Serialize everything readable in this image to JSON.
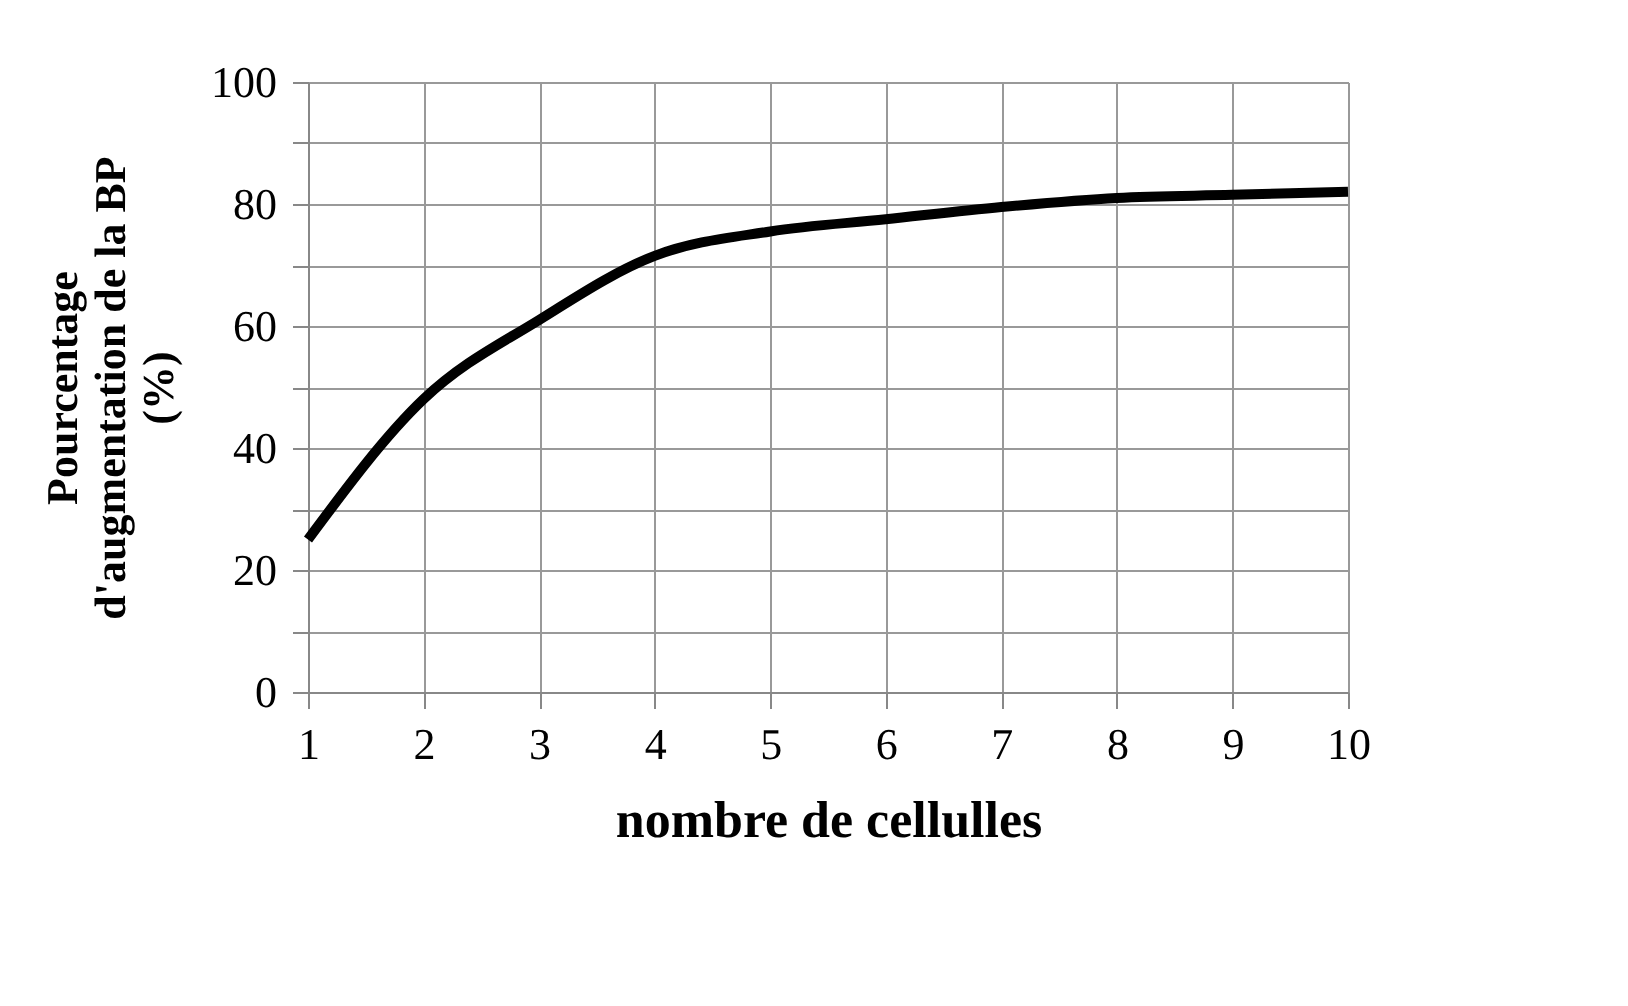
{
  "chart_data": {
    "type": "line",
    "xlabel": "nombre de cellulles",
    "ylabel": "Pourcentage\nd'augmentation de la BP\n(%)",
    "x": [
      1,
      2,
      3,
      4,
      5,
      6,
      7,
      8,
      9,
      10
    ],
    "series": [
      {
        "color": "#000000",
        "values": [
          25,
          48,
          61,
          71.5,
          75.5,
          77.5,
          79.5,
          81,
          81.5,
          82
        ]
      }
    ],
    "xlim": [
      1,
      10
    ],
    "xticks": [
      1,
      2,
      3,
      4,
      5,
      6,
      7,
      8,
      9,
      10
    ],
    "ylim": [
      0,
      100
    ],
    "yticks": [
      0,
      {
        "value": 10,
        "label": null
      },
      20,
      {
        "value": 30,
        "label": null
      },
      40,
      {
        "value": 50,
        "label": null
      },
      60,
      {
        "value": 70,
        "label": null
      },
      80,
      {
        "value": 90,
        "label": null
      },
      100
    ],
    "grid": true,
    "marker": "none",
    "line_style": "solid"
  }
}
